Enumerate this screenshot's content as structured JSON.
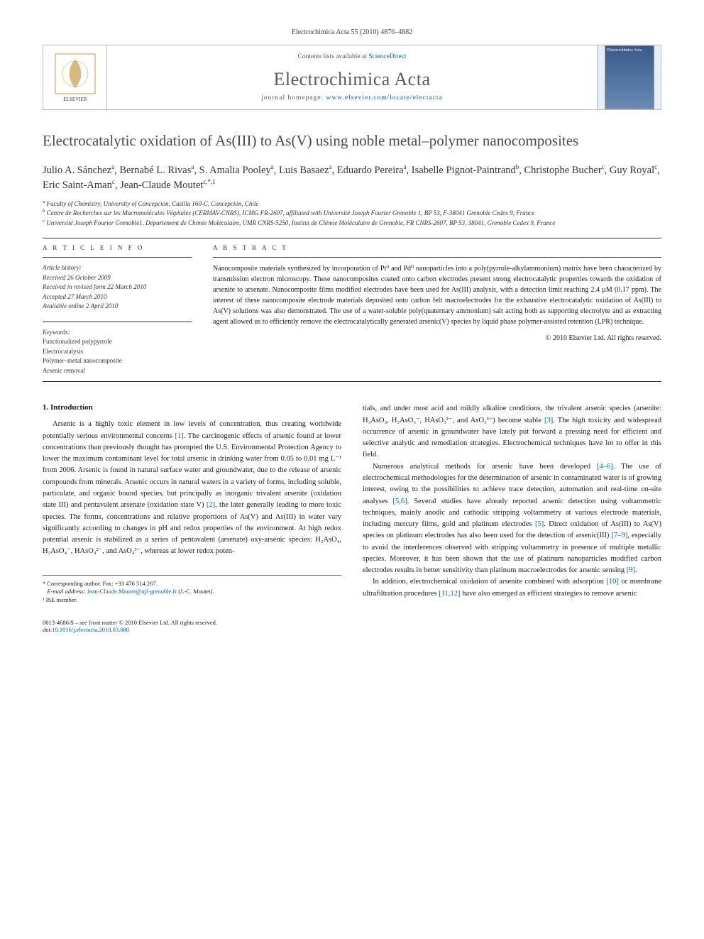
{
  "header_citation": "Electrochimica Acta 55 (2010) 4876–4882",
  "journal_box": {
    "contents_prefix": "Contents lists available at ",
    "contents_link": "ScienceDirect",
    "journal_name": "Electrochimica Acta",
    "homepage_prefix": "journal homepage: ",
    "homepage_link": "www.elsevier.com/locate/electacta",
    "cover_text": "Electrochimica Acta"
  },
  "title": "Electrocatalytic oxidation of As(III) to As(V) using noble metal–polymer nanocomposites",
  "authors_html": "Julio A. Sánchez<sup>a</sup>, Bernabé L. Rivas<sup>a</sup>, S. Amalia Pooley<sup>a</sup>, Luis Basaez<sup>a</sup>, Eduardo Pereira<sup>a</sup>, Isabelle Pignot-Paintrand<sup>b</sup>, Christophe Bucher<sup>c</sup>, Guy Royal<sup>c</sup>, Eric Saint-Aman<sup>c</sup>, Jean-Claude Moutet<sup>c,*,1</sup>",
  "affiliations": {
    "a": "Faculty of Chemistry, University of Concepción, Casilla 160-C, Concepción, Chile",
    "b": "Centre de Recherches sur les Macromolécules Végétales (CERMAV-CNRS), ICMG FR-2607, affiliated with Université Joseph Fourier Grenoble 1, BP 53, F-38041 Grenoble Cedex 9, France",
    "c": "Université Joseph Fourier Grenoble1, Département de Chimie Moléculaire, UMR CNRS-5250, Institut de Chimie Moléculaire de Grenoble, FR CNRS-2607, BP 53, 38041, Grenoble Cedex 9, France"
  },
  "article_info": {
    "heading": "A R T I C L E   I N F O",
    "history_label": "Article history:",
    "history": [
      "Received 26 October 2009",
      "Received in revised form 22 March 2010",
      "Accepted 27 March 2010",
      "Available online 2 April 2010"
    ],
    "keywords_label": "Keywords:",
    "keywords": [
      "Functionalized polypyrrole",
      "Electrocatalysis",
      "Polymer–metal nanocomposite",
      "Arsenic removal"
    ]
  },
  "abstract": {
    "heading": "A B S T R A C T",
    "text": "Nanocomposite materials synthesized by incorporation of Pt⁰ and Pd⁰ nanoparticles into a poly(pyrrole-alkylammonium) matrix have been characterized by transmission electron microscopy. These nanocomposites coated onto carbon electrodes present strong electrocatalytic properties towards the oxidation of arsenite to arsenate. Nanocomposite films modified electrodes have been used for As(III) analysis, with a detection limit reaching 2.4 µM (0.17 ppm). The interest of these nanocomposite electrode materials deposited onto carbon felt macroelectrodes for the exhaustive electrocatalytic oxidation of As(III) to As(V) solutions was also demonstrated. The use of a water-soluble poly(quaternary ammonium) salt acting both as supporting electrolyte and as extracting agent allowed us to efficiently remove the electrocatalytically generated arsenic(V) species by liquid phase polymer-assisted retention (LPR) technique.",
    "copyright": "© 2010 Elsevier Ltd. All rights reserved."
  },
  "body": {
    "section1_heading": "1. Introduction",
    "col1_p1": "Arsenic is a highly toxic element in low levels of concentration, thus creating worldwide potentially serious environmental concerns [1]. The carcinogenic effects of arsenic found at lower concentrations than previously thought has prompted the U.S. Environmental Protection Agency to lower the maximum contaminant level for total arsenic in drinking water from 0.05 to 0.01 mg L⁻¹ from 2006. Arsenic is found in natural surface water and groundwater, due to the release of arsenic compounds from minerals. Arsenic occurs in natural waters in a variety of forms, including soluble, particulate, and organic bound species, but principally as inorganic trivalent arsenite (oxidation state III) and pentavalent arsenate (oxidation state V) [2], the later generally leading to more toxic species. The forms, concentrations and relative proportions of As(V) and As(III) in water vary significantly according to changes in pH and redox properties of the environment. At high redox potential arsenic is stabilized as a series of pentavalent (arsenate) oxy-arsenic species: H₃AsO₄, H₂AsO₄⁻, HAsO₄²⁻, and AsO₄³⁻, whereas at lower redox poten-",
    "col2_p1": "tials, and under most acid and mildly alkaline conditions, the trivalent arsenic species (arsenite: H₃AsO₃, H₂AsO₃⁻, HAsO₃²⁻, and AsO₃³⁻) become stable [3]. The high toxicity and widespread occurrence of arsenic in groundwater have lately put forward a pressing need for efficient and selective analytic and remediation strategies. Electrochemical techniques have lot to offer in this field.",
    "col2_p2": "Numerous analytical methods for arsenic have been developed [4–6]. The use of electrochemical methodologies for the determination of arsenic in contaminated water is of growing interest, owing to the possibilities to achieve trace detection, automation and real-time on-site analyses [5,6]. Several studies have already reported arsenic detection using voltammetric techniques, mainly anodic and cathodic stripping voltammetry at various electrode materials, including mercury films, gold and platinum electrodes [5]. Direct oxidation of As(III) to As(V) species on platinum electrodes has also been used for the detection of arsenic(III) [7–9], especially to avoid the interferences observed with stripping voltammetry in presence of multiple metallic species. Moreover, it has been shown that the use of platinum nanoparticles modified carbon electrodes results in better sensitivity than platinum macroelectrodes for arsenic sensing [9].",
    "col2_p3": "In addition, electrochemical oxidation of arsenite combined with adsorption [10] or membrane ultrafiltration procedures [11,12] have also emerged as efficient strategies to remove arsenic"
  },
  "footnotes": {
    "corr_label": "* Corresponding author. Fax: +33 476 514 267.",
    "email_label": "E-mail address: ",
    "email": "Jean-Claude.Moutet@ujf-grenoble.fr",
    "email_suffix": " (J.-C. Moutet).",
    "note1": "¹ ISE member."
  },
  "footer": {
    "left_line1": "0013-4686/$ – see front matter © 2010 Elsevier Ltd. All rights reserved.",
    "doi_prefix": "doi:",
    "doi": "10.1016/j.electacta.2010.03.080"
  },
  "colors": {
    "link": "#0066aa",
    "rule": "#333333",
    "body_text": "#1a1a1a",
    "title_gray": "#4a4a4a"
  }
}
